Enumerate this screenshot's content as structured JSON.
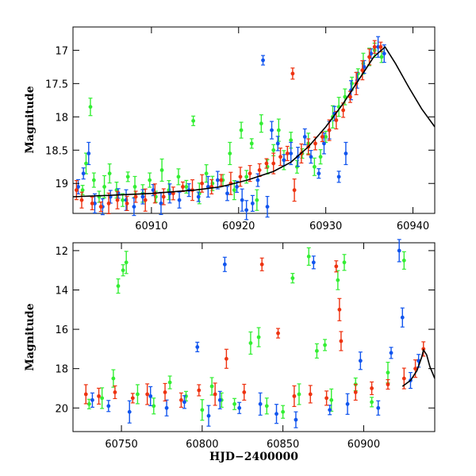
{
  "chart_data": [
    {
      "type": "scatter",
      "title": "",
      "xlabel": "",
      "ylabel": "Magnitude",
      "xlim": [
        60901,
        60942.5
      ],
      "ylim": [
        19.45,
        16.65
      ],
      "y_inverted": true,
      "x_ticks": [
        60910,
        60920,
        60930,
        60940
      ],
      "y_ticks": [
        17,
        17.5,
        18,
        18.5,
        19
      ],
      "grid": false,
      "legend": "none",
      "series_colors": {
        "green": "#33ee33",
        "blue": "#1155ee",
        "red": "#ee3311",
        "model": "#000000"
      },
      "series": [
        {
          "color_key": "green",
          "points": [
            [
              60902.1,
              19.1
            ],
            [
              60902.5,
              18.7
            ],
            [
              60903.0,
              17.85
            ],
            [
              60903.4,
              18.95
            ],
            [
              60904.0,
              19.2
            ],
            [
              60904.6,
              19.05
            ],
            [
              60905.2,
              18.85
            ],
            [
              60906.0,
              19.1
            ],
            [
              60906.7,
              19.25
            ],
            [
              60907.3,
              18.9
            ],
            [
              60908.1,
              19.05
            ],
            [
              60909.0,
              19.15
            ],
            [
              60909.8,
              18.95
            ],
            [
              60910.5,
              19.2
            ],
            [
              60911.2,
              18.8
            ],
            [
              60912.0,
              19.1
            ],
            [
              60913.1,
              18.9
            ],
            [
              60914.0,
              19.05
            ],
            [
              60914.8,
              18.06
            ],
            [
              60915.5,
              19.15
            ],
            [
              60916.3,
              18.85
            ],
            [
              60917.0,
              19.0
            ],
            [
              60918.2,
              18.95
            ],
            [
              60919.0,
              18.55
            ],
            [
              60919.5,
              19.1
            ],
            [
              60920.3,
              18.2
            ],
            [
              60920.9,
              18.9
            ],
            [
              60921.5,
              18.4
            ],
            [
              60922.1,
              19.25
            ],
            [
              60922.6,
              18.1
            ],
            [
              60923.3,
              18.75
            ],
            [
              60924.0,
              18.5
            ],
            [
              60924.6,
              18.2
            ],
            [
              60925.2,
              18.65
            ],
            [
              60926.0,
              18.35
            ],
            [
              60926.7,
              18.75
            ],
            [
              60927.3,
              18.55
            ],
            [
              60928.0,
              18.4
            ],
            [
              60928.7,
              18.75
            ],
            [
              60929.4,
              18.6
            ],
            [
              60930.0,
              18.3
            ],
            [
              60930.8,
              18.0
            ],
            [
              60931.5,
              17.85
            ],
            [
              60932.2,
              17.7
            ],
            [
              60933.0,
              17.5
            ],
            [
              60933.7,
              17.35
            ],
            [
              60934.3,
              17.2
            ],
            [
              60935.0,
              17.1
            ],
            [
              60935.6,
              17.0
            ],
            [
              60936.4,
              17.1
            ]
          ]
        },
        {
          "color_key": "blue",
          "points": [
            [
              60901.6,
              19.05
            ],
            [
              60902.2,
              18.85
            ],
            [
              60902.8,
              18.55
            ],
            [
              60903.5,
              19.3
            ],
            [
              60904.4,
              19.35
            ],
            [
              60905.3,
              19.2
            ],
            [
              60906.2,
              19.15
            ],
            [
              60907.1,
              19.25
            ],
            [
              60908.0,
              19.35
            ],
            [
              60909.0,
              19.2
            ],
            [
              60910.2,
              19.1
            ],
            [
              60911.1,
              19.3
            ],
            [
              60912.1,
              19.15
            ],
            [
              60913.2,
              19.25
            ],
            [
              60914.3,
              19.1
            ],
            [
              60915.4,
              19.2
            ],
            [
              60916.5,
              19.05
            ],
            [
              60917.6,
              18.95
            ],
            [
              60918.7,
              19.15
            ],
            [
              60919.8,
              19.05
            ],
            [
              60920.4,
              19.25
            ],
            [
              60920.9,
              19.4
            ],
            [
              60921.6,
              19.3
            ],
            [
              60922.2,
              18.95
            ],
            [
              60922.8,
              17.15
            ],
            [
              60923.3,
              19.35
            ],
            [
              60923.8,
              18.2
            ],
            [
              60924.5,
              18.4
            ],
            [
              60925.2,
              18.65
            ],
            [
              60926.0,
              18.55
            ],
            [
              60926.8,
              18.6
            ],
            [
              60927.6,
              18.3
            ],
            [
              60928.3,
              18.6
            ],
            [
              60929.2,
              18.85
            ],
            [
              60929.8,
              18.4
            ],
            [
              60930.4,
              18.2
            ],
            [
              60931.0,
              17.95
            ],
            [
              60931.5,
              18.9
            ],
            [
              60932.3,
              18.55
            ],
            [
              60932.9,
              17.6
            ],
            [
              60933.6,
              17.45
            ],
            [
              60934.4,
              17.25
            ],
            [
              60935.2,
              17.05
            ],
            [
              60936.0,
              16.95
            ],
            [
              60936.7,
              17.05
            ]
          ]
        },
        {
          "color_key": "red",
          "points": [
            [
              60901.4,
              19.1
            ],
            [
              60902.0,
              19.25
            ],
            [
              60903.2,
              19.3
            ],
            [
              60904.2,
              19.35
            ],
            [
              60905.1,
              19.3
            ],
            [
              60906.1,
              19.25
            ],
            [
              60907.2,
              19.3
            ],
            [
              60908.2,
              19.2
            ],
            [
              60909.3,
              19.25
            ],
            [
              60910.4,
              19.15
            ],
            [
              60911.4,
              19.2
            ],
            [
              60912.5,
              19.15
            ],
            [
              60913.6,
              19.05
            ],
            [
              60914.7,
              19.1
            ],
            [
              60915.8,
              19.0
            ],
            [
              60916.9,
              19.05
            ],
            [
              60918.0,
              18.95
            ],
            [
              60919.1,
              19.0
            ],
            [
              60920.2,
              18.9
            ],
            [
              60921.3,
              18.85
            ],
            [
              60922.4,
              18.8
            ],
            [
              60923.2,
              18.7
            ],
            [
              60924.0,
              18.7
            ],
            [
              60924.8,
              18.6
            ],
            [
              60925.6,
              18.55
            ],
            [
              60926.2,
              17.35
            ],
            [
              60926.4,
              19.1
            ],
            [
              60927.2,
              18.55
            ],
            [
              60928.0,
              18.45
            ],
            [
              60928.8,
              18.4
            ],
            [
              60929.6,
              18.3
            ],
            [
              60930.4,
              18.2
            ],
            [
              60931.2,
              18.05
            ],
            [
              60932.0,
              17.9
            ],
            [
              60932.8,
              17.7
            ],
            [
              60933.5,
              17.5
            ],
            [
              60934.2,
              17.3
            ],
            [
              60935.0,
              17.1
            ],
            [
              60935.6,
              16.95
            ],
            [
              60936.3,
              16.95
            ]
          ]
        }
      ],
      "model_curve": [
        [
          60901,
          19.2
        ],
        [
          60905,
          19.18
        ],
        [
          60910,
          19.15
        ],
        [
          60915,
          19.1
        ],
        [
          60918,
          19.05
        ],
        [
          60921,
          18.95
        ],
        [
          60924,
          18.82
        ],
        [
          60926,
          18.68
        ],
        [
          60928,
          18.45
        ],
        [
          60930,
          18.15
        ],
        [
          60932,
          17.8
        ],
        [
          60934,
          17.4
        ],
        [
          60935.5,
          17.1
        ],
        [
          60936.8,
          16.95
        ],
        [
          60938,
          17.2
        ],
        [
          60939.5,
          17.55
        ],
        [
          60941,
          17.88
        ],
        [
          60942.5,
          18.15
        ]
      ]
    },
    {
      "type": "scatter",
      "title": "",
      "xlabel": "HJD−2400000",
      "ylabel": "Magnitude",
      "xlim": [
        60720,
        60944
      ],
      "ylim": [
        21.2,
        11.6
      ],
      "y_inverted": true,
      "x_ticks": [
        60750,
        60800,
        60850,
        60900
      ],
      "y_ticks": [
        12,
        14,
        16,
        18,
        20
      ],
      "grid": false,
      "legend": "none",
      "series": [
        {
          "color_key": "green",
          "points": [
            [
              60730,
              19.8
            ],
            [
              60738,
              19.5
            ],
            [
              60745,
              18.5
            ],
            [
              60748,
              13.8
            ],
            [
              60751,
              13.0
            ],
            [
              60753,
              12.6
            ],
            [
              60760,
              19.3
            ],
            [
              60770,
              19.9
            ],
            [
              60780,
              18.7
            ],
            [
              60790,
              19.4
            ],
            [
              60800,
              20.1
            ],
            [
              60806,
              18.9
            ],
            [
              60812,
              19.6
            ],
            [
              60820,
              19.8
            ],
            [
              60830,
              16.7
            ],
            [
              60835,
              16.4
            ],
            [
              60840,
              19.9
            ],
            [
              60850,
              20.2
            ],
            [
              60856,
              13.4
            ],
            [
              60860,
              19.3
            ],
            [
              60866,
              12.3
            ],
            [
              60871,
              17.1
            ],
            [
              60876,
              16.8
            ],
            [
              60880,
              19.6
            ],
            [
              60884,
              13.5
            ],
            [
              60888,
              12.6
            ],
            [
              60895,
              18.8
            ],
            [
              60905,
              19.7
            ],
            [
              60915,
              18.2
            ],
            [
              60925,
              12.5
            ]
          ]
        },
        {
          "color_key": "blue",
          "points": [
            [
              60732,
              19.6
            ],
            [
              60742,
              19.9
            ],
            [
              60755,
              20.2
            ],
            [
              60768,
              19.4
            ],
            [
              60778,
              20.0
            ],
            [
              60789,
              19.7
            ],
            [
              60797,
              16.9
            ],
            [
              60804,
              20.4
            ],
            [
              60811,
              19.6
            ],
            [
              60814,
              12.7
            ],
            [
              60823,
              20.0
            ],
            [
              60836,
              19.8
            ],
            [
              60846,
              20.3
            ],
            [
              60858,
              20.6
            ],
            [
              60869,
              12.6
            ],
            [
              60879,
              20.1
            ],
            [
              60890,
              19.8
            ],
            [
              60898,
              17.6
            ],
            [
              60909,
              20.0
            ],
            [
              60917,
              17.2
            ],
            [
              60922,
              12.0
            ],
            [
              60924,
              15.4
            ],
            [
              60929,
              18.6
            ],
            [
              60934,
              17.6
            ]
          ]
        },
        {
          "color_key": "red",
          "points": [
            [
              60728,
              19.3
            ],
            [
              60736,
              19.4
            ],
            [
              60746,
              19.2
            ],
            [
              60757,
              19.5
            ],
            [
              60766,
              19.3
            ],
            [
              60777,
              19.2
            ],
            [
              60787,
              19.6
            ],
            [
              60798,
              19.1
            ],
            [
              60808,
              19.3
            ],
            [
              60815,
              17.5
            ],
            [
              60826,
              19.2
            ],
            [
              60837,
              12.7
            ],
            [
              60847,
              16.2
            ],
            [
              60857,
              19.4
            ],
            [
              60867,
              19.3
            ],
            [
              60877,
              19.5
            ],
            [
              60883,
              12.8
            ],
            [
              60885,
              15.0
            ],
            [
              60886,
              16.6
            ],
            [
              60895,
              19.2
            ],
            [
              60905,
              19.0
            ],
            [
              60915,
              18.8
            ],
            [
              60925,
              18.5
            ],
            [
              60932,
              18.0
            ],
            [
              60937,
              17.0
            ]
          ]
        }
      ],
      "model_curve": [
        [
          60924,
          18.9
        ],
        [
          60929,
          18.6
        ],
        [
          60933,
          18.1
        ],
        [
          60936,
          17.4
        ],
        [
          60937,
          17.05
        ],
        [
          60939,
          17.3
        ],
        [
          60941,
          17.9
        ],
        [
          60944,
          18.5
        ]
      ]
    }
  ]
}
